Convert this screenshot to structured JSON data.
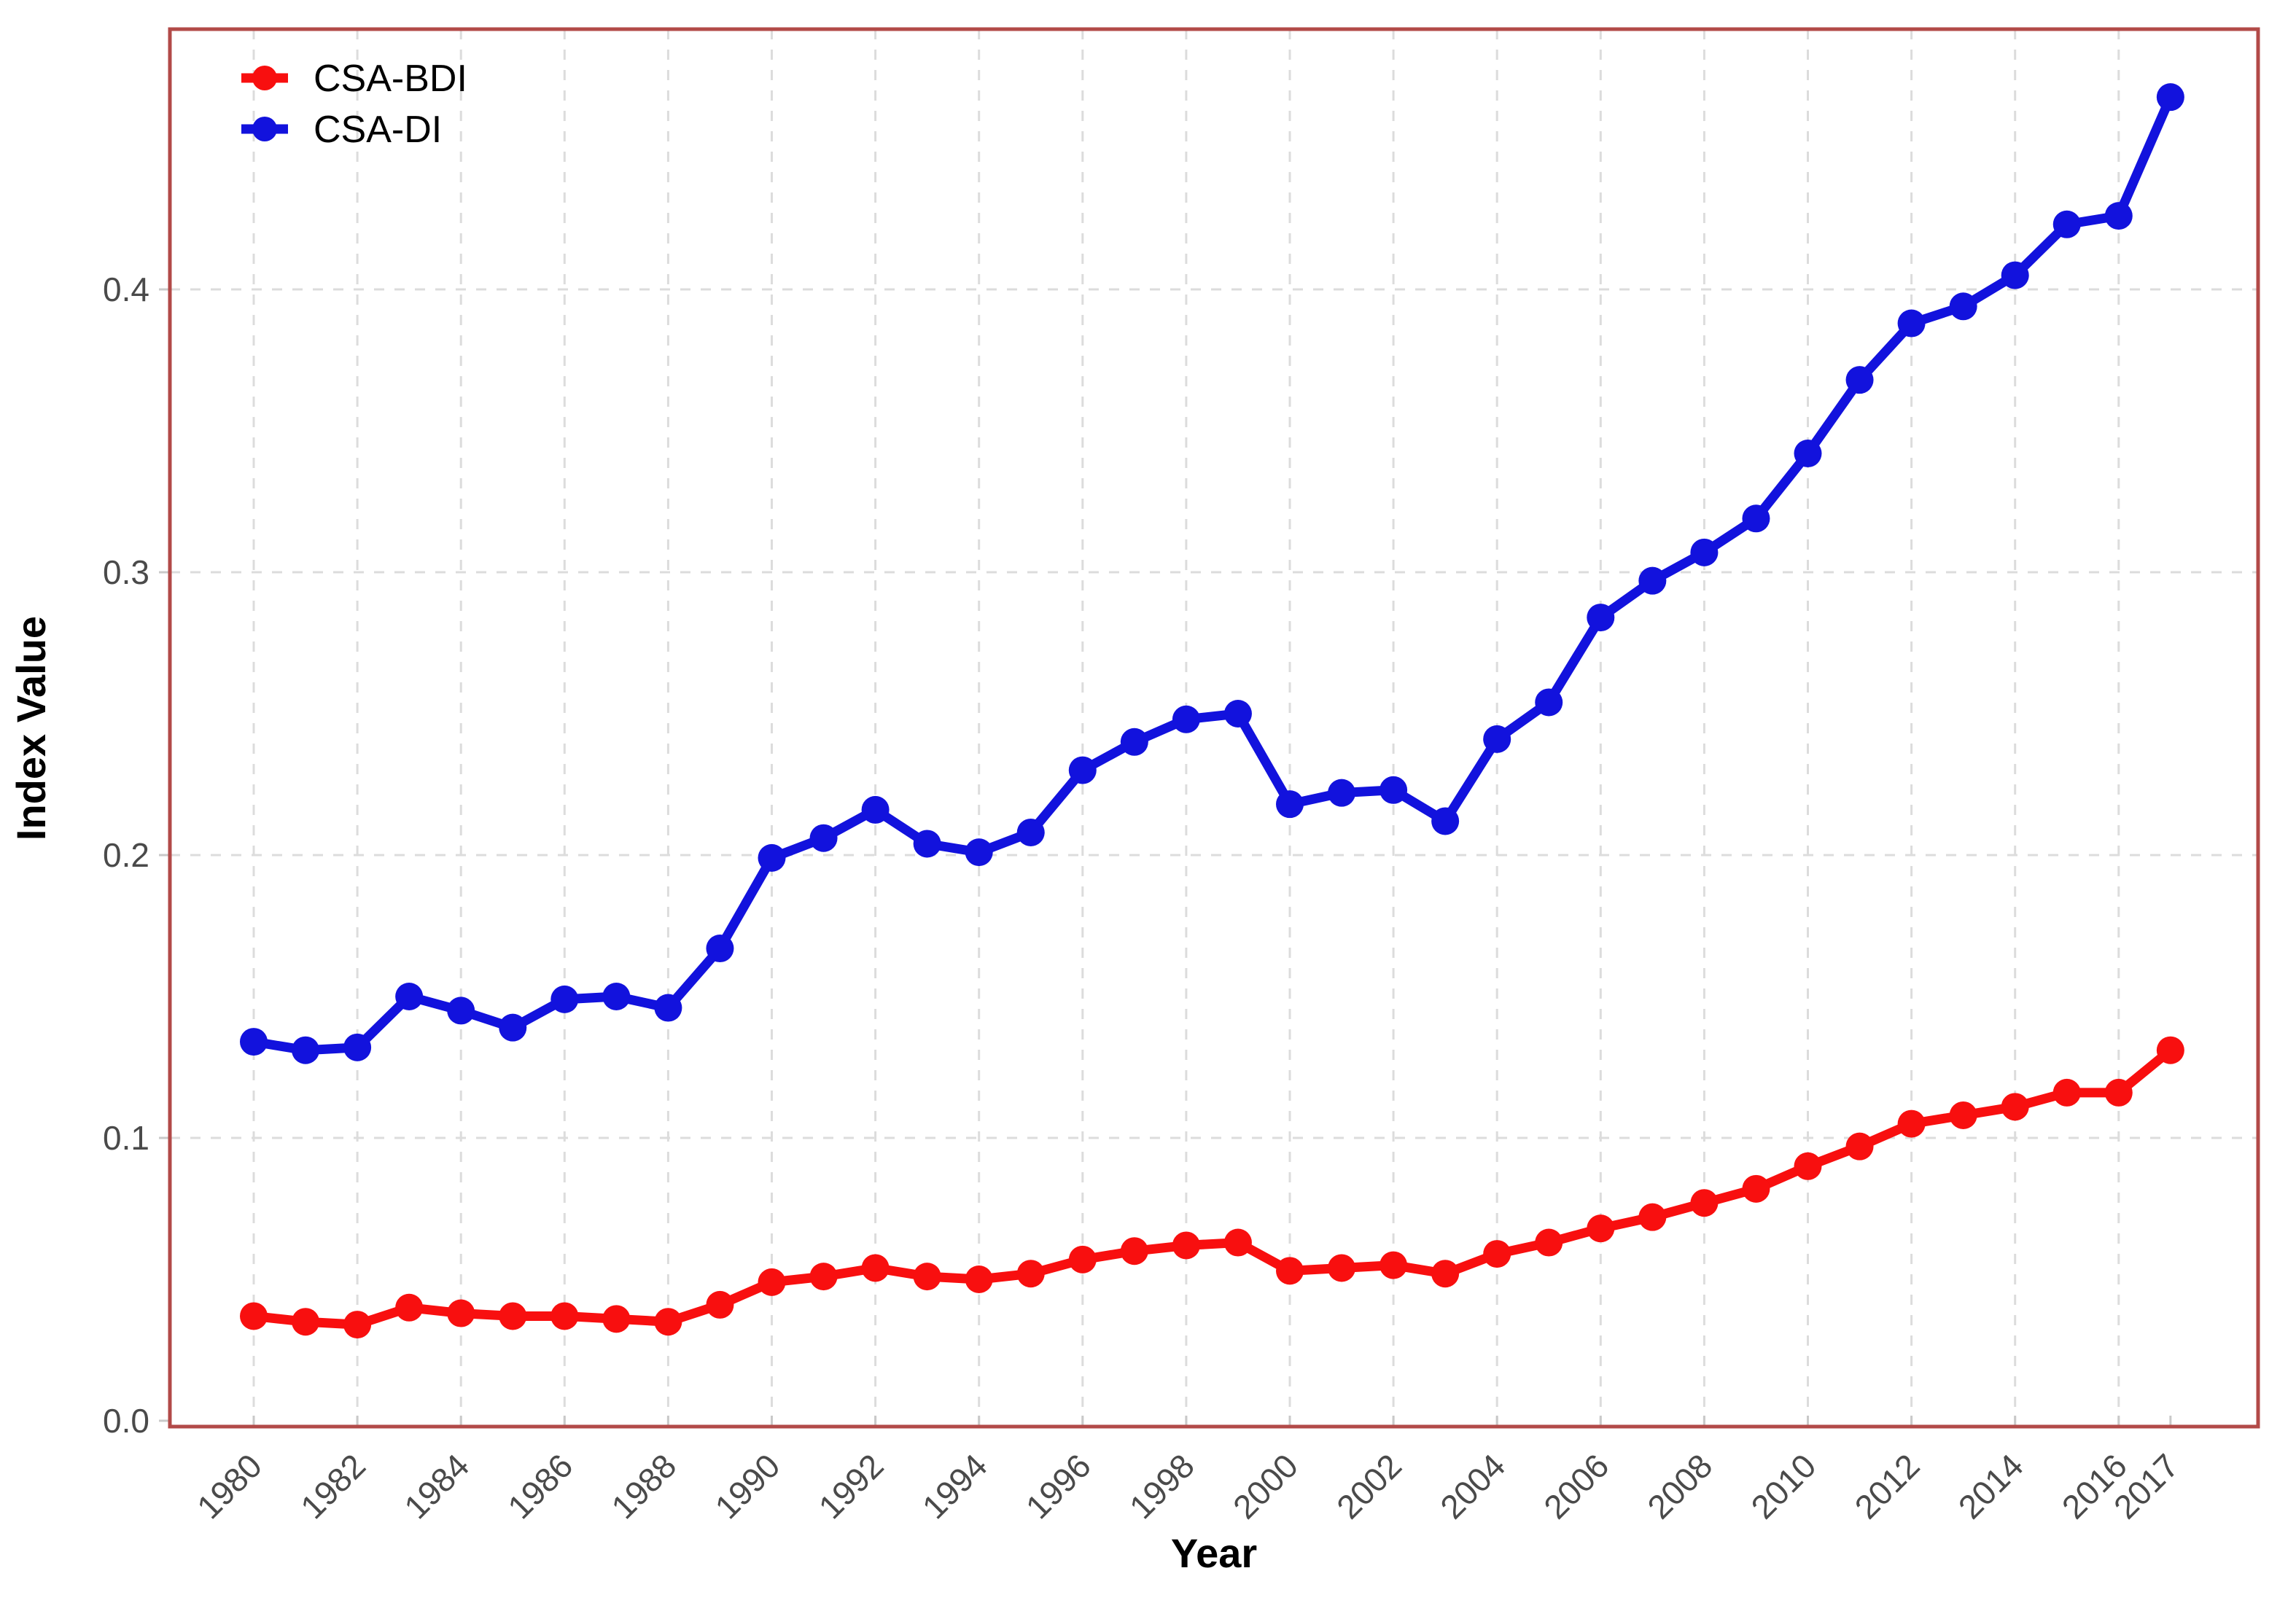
{
  "figure": {
    "background": "#ffffff",
    "panel_border_color": "#b24a48",
    "gridline_color": "#dcdcdc",
    "tick_mark_color": "#c9c9c9",
    "tick_label_color": "#4a4a4a",
    "axis_title_color": "#000000",
    "legend_text_color": "#000000"
  },
  "chart_data": {
    "type": "line",
    "title": "",
    "xlabel": "Year",
    "ylabel": "Index Value",
    "grid": "dashed major gridlines, horizontal every 0.1, vertical every 2 years",
    "legend_position": "top-left inside panel",
    "xlim": [
      1978.4,
      2018.7
    ],
    "ylim": [
      0,
      0.492
    ],
    "x": [
      1980,
      1981,
      1982,
      1983,
      1984,
      1985,
      1986,
      1987,
      1988,
      1989,
      1990,
      1991,
      1992,
      1993,
      1994,
      1995,
      1996,
      1997,
      1998,
      1999,
      2000,
      2001,
      2002,
      2003,
      2004,
      2005,
      2006,
      2007,
      2008,
      2009,
      2010,
      2011,
      2012,
      2013,
      2014,
      2015,
      2016,
      2017
    ],
    "x_tick_labels": [
      "1980",
      "1982",
      "1984",
      "1986",
      "1988",
      "1990",
      "1992",
      "1994",
      "1996",
      "1998",
      "2000",
      "2002",
      "2004",
      "2006",
      "2008",
      "2010",
      "2012",
      "2014",
      "2016",
      "2017"
    ],
    "y_ticks": [
      0,
      0.1,
      0.2,
      0.3,
      0.4
    ],
    "y_tick_labels": [
      "0.0",
      "0.1",
      "0.2",
      "0.3",
      "0.4"
    ],
    "series": [
      {
        "name": "CSA-BDI",
        "color": "#f80f0f",
        "marker": "filled-circle",
        "values": [
          0.037,
          0.035,
          0.034,
          0.04,
          0.038,
          0.037,
          0.037,
          0.036,
          0.035,
          0.041,
          0.049,
          0.051,
          0.054,
          0.051,
          0.05,
          0.052,
          0.057,
          0.06,
          0.062,
          0.063,
          0.053,
          0.054,
          0.055,
          0.052,
          0.059,
          0.063,
          0.068,
          0.072,
          0.077,
          0.082,
          0.09,
          0.097,
          0.105,
          0.108,
          0.111,
          0.116,
          0.116,
          0.131
        ]
      },
      {
        "name": "CSA-DI",
        "color": "#1212dd",
        "marker": "filled-circle",
        "values": [
          0.134,
          0.131,
          0.132,
          0.15,
          0.145,
          0.139,
          0.149,
          0.15,
          0.146,
          0.167,
          0.199,
          0.206,
          0.216,
          0.204,
          0.201,
          0.208,
          0.23,
          0.24,
          0.248,
          0.25,
          0.218,
          0.222,
          0.223,
          0.212,
          0.241,
          0.254,
          0.284,
          0.297,
          0.307,
          0.319,
          0.342,
          0.368,
          0.388,
          0.394,
          0.405,
          0.423,
          0.426,
          0.468
        ]
      }
    ]
  }
}
